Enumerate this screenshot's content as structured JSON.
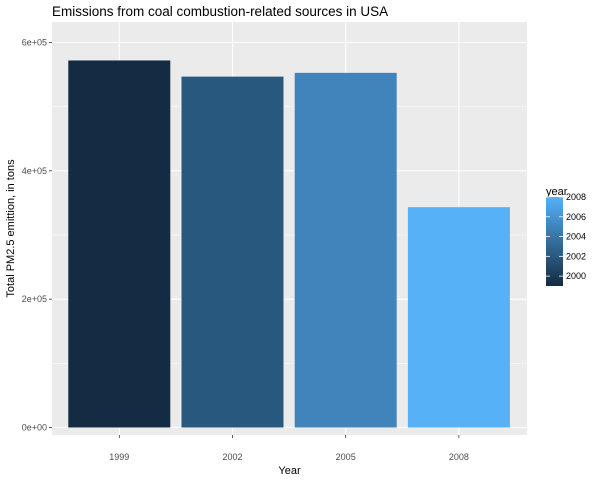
{
  "chart_data": {
    "type": "bar",
    "title": "Emissions from coal combustion-related sources in USA",
    "xlabel": "Year",
    "ylabel": "Total PM2.5 emittion, in tons",
    "categories": [
      "1999",
      "2002",
      "2005",
      "2008"
    ],
    "values": [
      572000,
      546800,
      552700,
      343400
    ],
    "ylim": [
      0,
      610000
    ],
    "yticks": [
      0,
      200000,
      400000,
      600000
    ],
    "ytick_labels": [
      "0e+00",
      "2e+05",
      "4e+05",
      "6e+05"
    ],
    "grid": true,
    "legend": {
      "title": "year",
      "placement": "right",
      "range": [
        1999,
        2008
      ],
      "ticks": [
        2000,
        2002,
        2004,
        2006,
        2008
      ],
      "color_low": "#132B43",
      "color_high": "#56B1F7"
    },
    "panel_background": "#EBEBEB",
    "grid_color": "#FFFFFF"
  }
}
